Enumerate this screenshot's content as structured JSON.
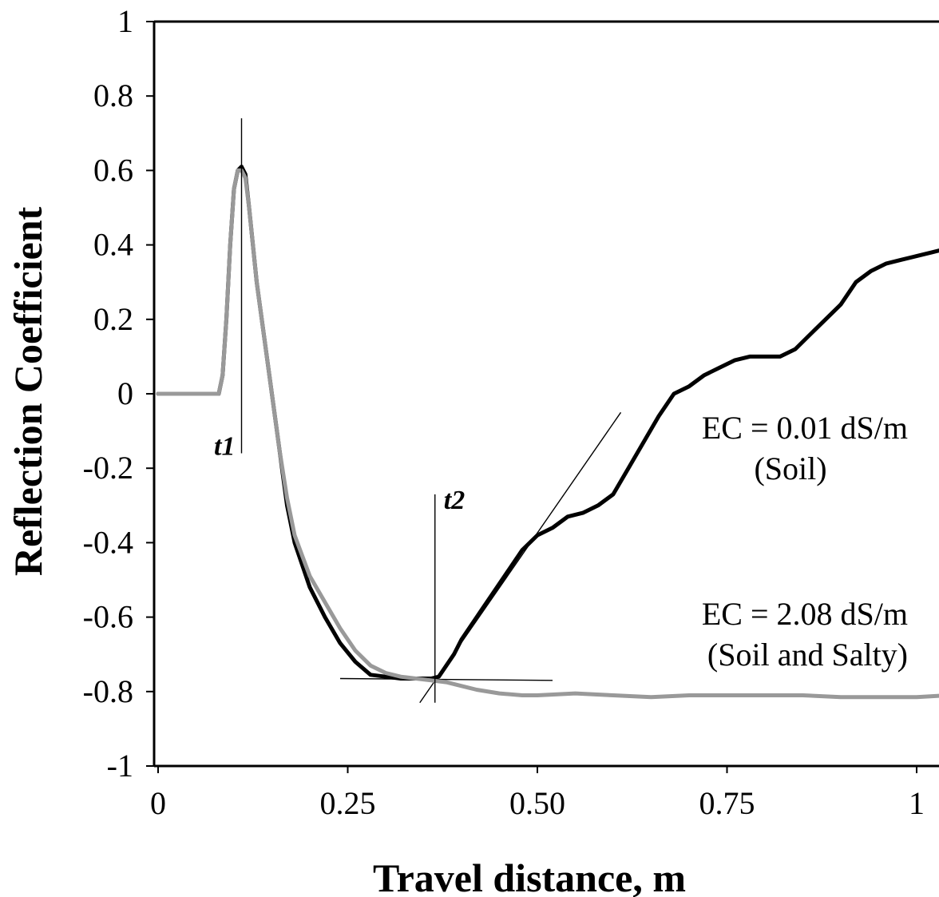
{
  "chart_data": {
    "type": "line",
    "xlabel": "Travel distance, m",
    "ylabel": "Reflection Coefficient",
    "xlim": [
      0,
      1.04
    ],
    "ylim": [
      -1,
      1
    ],
    "x_ticks": [
      "0",
      "0.25",
      "0.50",
      "0.75",
      "1"
    ],
    "x_tick_values": [
      0,
      0.25,
      0.5,
      0.75,
      1
    ],
    "y_ticks": [
      "1",
      "0.8",
      "0.6",
      "0.4",
      "0.2",
      "0",
      "-0.2",
      "-0.4",
      "-0.6",
      "-0.8",
      "-1"
    ],
    "y_tick_values": [
      1,
      0.8,
      0.6,
      0.4,
      0.2,
      0,
      -0.2,
      -0.4,
      -0.6,
      -0.8,
      -1
    ],
    "grid": false,
    "legend": "none",
    "series": [
      {
        "color": "#000000",
        "x": [
          0.0,
          0.05,
          0.08,
          0.085,
          0.09,
          0.095,
          0.1,
          0.105,
          0.11,
          0.115,
          0.12,
          0.13,
          0.14,
          0.15,
          0.16,
          0.17,
          0.18,
          0.2,
          0.22,
          0.24,
          0.26,
          0.28,
          0.3,
          0.32,
          0.34,
          0.36,
          0.37,
          0.38,
          0.39,
          0.4,
          0.42,
          0.44,
          0.46,
          0.48,
          0.5,
          0.52,
          0.54,
          0.56,
          0.58,
          0.6,
          0.62,
          0.64,
          0.66,
          0.68,
          0.7,
          0.72,
          0.74,
          0.76,
          0.78,
          0.8,
          0.82,
          0.84,
          0.86,
          0.88,
          0.9,
          0.92,
          0.94,
          0.96,
          0.98,
          1.0,
          1.02,
          1.04
        ],
        "y": [
          0.0,
          0.0,
          0.0,
          0.05,
          0.2,
          0.4,
          0.55,
          0.6,
          0.61,
          0.59,
          0.5,
          0.3,
          0.15,
          0.0,
          -0.15,
          -0.3,
          -0.4,
          -0.52,
          -0.6,
          -0.67,
          -0.72,
          -0.755,
          -0.76,
          -0.765,
          -0.765,
          -0.765,
          -0.76,
          -0.73,
          -0.7,
          -0.66,
          -0.6,
          -0.54,
          -0.48,
          -0.42,
          -0.38,
          -0.36,
          -0.33,
          -0.32,
          -0.3,
          -0.27,
          -0.2,
          -0.13,
          -0.06,
          0.0,
          0.02,
          0.05,
          0.07,
          0.09,
          0.1,
          0.1,
          0.1,
          0.12,
          0.16,
          0.2,
          0.24,
          0.3,
          0.33,
          0.35,
          0.36,
          0.37,
          0.38,
          0.39
        ]
      },
      {
        "color": "#999999",
        "x": [
          0.0,
          0.05,
          0.08,
          0.085,
          0.09,
          0.095,
          0.1,
          0.105,
          0.11,
          0.115,
          0.12,
          0.13,
          0.14,
          0.15,
          0.16,
          0.17,
          0.18,
          0.2,
          0.22,
          0.24,
          0.26,
          0.28,
          0.3,
          0.32,
          0.34,
          0.36,
          0.38,
          0.4,
          0.42,
          0.45,
          0.48,
          0.5,
          0.55,
          0.6,
          0.65,
          0.7,
          0.75,
          0.8,
          0.85,
          0.9,
          0.95,
          1.0,
          1.04
        ],
        "y": [
          0.0,
          0.0,
          0.0,
          0.05,
          0.2,
          0.4,
          0.55,
          0.6,
          0.6,
          0.58,
          0.5,
          0.3,
          0.15,
          0.0,
          -0.15,
          -0.28,
          -0.38,
          -0.49,
          -0.56,
          -0.63,
          -0.69,
          -0.73,
          -0.75,
          -0.76,
          -0.765,
          -0.77,
          -0.775,
          -0.785,
          -0.795,
          -0.805,
          -0.81,
          -0.81,
          -0.805,
          -0.81,
          -0.815,
          -0.81,
          -0.81,
          -0.81,
          -0.81,
          -0.815,
          -0.815,
          -0.815,
          -0.81
        ]
      }
    ],
    "annotations": [
      {
        "text": "EC = 0.01 dS/m",
        "x": 0.87,
        "y": -0.12
      },
      {
        "text": "(Soil)",
        "x": 0.87,
        "y": -0.23
      },
      {
        "text": "EC = 2.08 dS/m",
        "x": 0.87,
        "y": -0.62
      },
      {
        "text": "(Soil and Salty)",
        "x": 0.87,
        "y": -0.73
      }
    ],
    "markers": [
      {
        "label": "t1",
        "x": 0.11,
        "y_from": -0.16,
        "y_to": 0.74
      },
      {
        "label": "t2",
        "x": 0.365,
        "y_from": -0.83,
        "y_to": -0.27
      }
    ],
    "reference_lines": [
      {
        "x1": 0.24,
        "y1": -0.765,
        "x2": 0.52,
        "y2": -0.77
      },
      {
        "x1": 0.345,
        "y1": -0.83,
        "x2": 0.61,
        "y2": -0.05
      }
    ]
  }
}
